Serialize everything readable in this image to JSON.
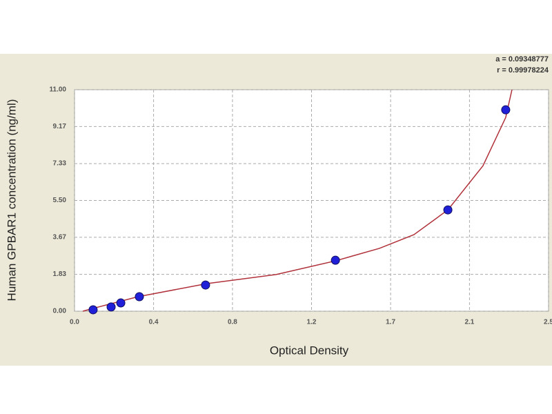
{
  "chart_data": {
    "type": "scatter",
    "x_label": "Optical Density",
    "y_label": "Human GPBAR1 concentration (ng/ml)",
    "annotations": [
      "a = 0.09348777",
      "r = 0.99978224"
    ],
    "xlim": [
      0,
      2.5
    ],
    "xticks": [
      {
        "value": 0,
        "label": "0.0"
      },
      {
        "value": 0.417,
        "label": "0.4"
      },
      {
        "value": 0.833,
        "label": "0.8"
      },
      {
        "value": 1.25,
        "label": "1.2"
      },
      {
        "value": 1.667,
        "label": "1.7"
      },
      {
        "value": 2.083,
        "label": "2.1"
      },
      2.5
    ],
    "ylim": [
      0,
      11
    ],
    "yticks": [
      {
        "value": 0,
        "label": "0.00"
      },
      1.83,
      3.67,
      {
        "value": 5.5,
        "label": "5.50"
      },
      7.33,
      9.17,
      {
        "value": 11,
        "label": "11.00"
      }
    ],
    "grid": true,
    "series": [
      {
        "color": "#2020d8",
        "x": [
          0.098,
          0.193,
          0.244,
          0.342,
          0.691,
          1.376,
          1.969,
          2.274
        ],
        "values": [
          0.07,
          0.21,
          0.41,
          0.72,
          1.3,
          2.53,
          5.03,
          10.0
        ]
      }
    ],
    "fit": {
      "color": "#b0303a",
      "x": [
        0.044,
        0.098,
        0.335,
        0.699,
        1.063,
        1.376,
        1.608,
        1.79,
        1.969,
        2.154,
        2.274,
        2.307
      ],
      "values": [
        0,
        0.14,
        0.72,
        1.37,
        1.82,
        2.5,
        3.12,
        3.8,
        5.03,
        7.22,
        9.62,
        11.0
      ]
    }
  }
}
